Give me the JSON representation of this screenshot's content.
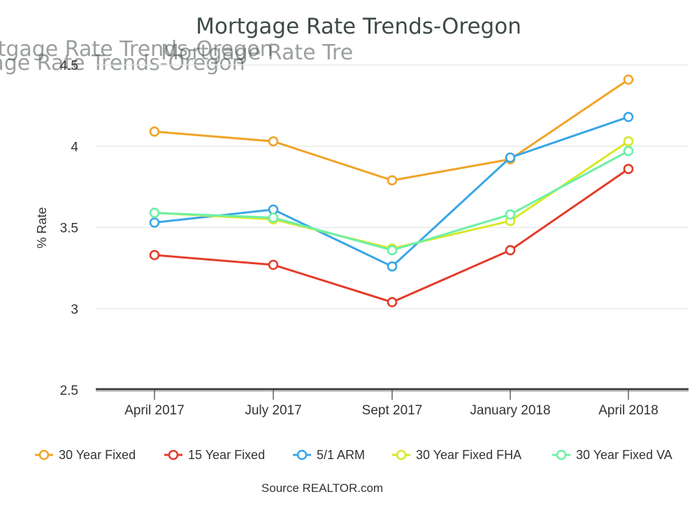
{
  "chart_data": {
    "type": "line",
    "title": "Mortgage Rate Trends-Oregon",
    "ylabel": "% Rate",
    "xlabel": "",
    "categories": [
      "April 2017",
      "July 2017",
      "Sept 2017",
      "January 2018",
      "April 2018"
    ],
    "y_ticks": [
      "2.5",
      "3",
      "3.5",
      "4",
      "4.5"
    ],
    "ylim": [
      2.5,
      4.5
    ],
    "grid": true,
    "legend_position": "bottom",
    "series": [
      {
        "name": "30 Year Fixed",
        "color": "#f0a428",
        "values": [
          4.09,
          4.03,
          3.79,
          3.92,
          4.41
        ]
      },
      {
        "name": "15 Year Fixed",
        "color": "#e43c2a",
        "values": [
          3.33,
          3.27,
          3.04,
          3.36,
          3.86
        ]
      },
      {
        "name": "5/1 ARM",
        "color": "#3aa6e6",
        "values": [
          3.53,
          3.61,
          3.26,
          3.93,
          4.18
        ]
      },
      {
        "name": "30 Year Fixed FHA",
        "color": "#d8e826",
        "values": [
          3.59,
          3.55,
          3.37,
          3.54,
          4.03
        ]
      },
      {
        "name": "30 Year Fixed VA",
        "color": "#6cf0a6",
        "values": [
          3.59,
          3.56,
          3.36,
          3.58,
          3.97
        ]
      }
    ],
    "source": "Source REALTOR.com"
  }
}
